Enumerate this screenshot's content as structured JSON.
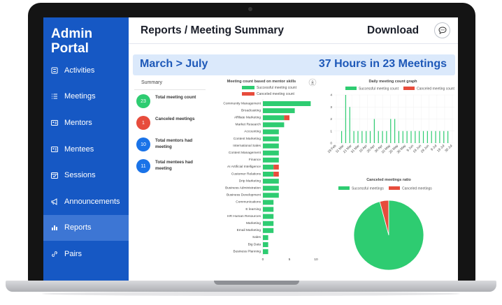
{
  "sidebar": {
    "title_line1": "Admin",
    "title_line2": "Portal",
    "items": [
      {
        "label": "Activities",
        "icon": "activities-icon"
      },
      {
        "label": "Meetings",
        "icon": "list-icon"
      },
      {
        "label": "Mentors",
        "icon": "id-card-icon"
      },
      {
        "label": "Mentees",
        "icon": "id-card-icon"
      },
      {
        "label": "Sessions",
        "icon": "calendar-icon"
      },
      {
        "label": "Announcements",
        "icon": "megaphone-icon"
      },
      {
        "label": "Reports",
        "icon": "bar-chart-icon",
        "active": true
      },
      {
        "label": "Pairs",
        "icon": "link-icon"
      }
    ]
  },
  "header": {
    "title": "Reports / Meeting Summary",
    "download_label": "Download",
    "chat_icon": "chat-icon"
  },
  "banner": {
    "range": "March > July",
    "total": "37 Hours in 23 Meetings"
  },
  "summary": {
    "title": "Summary",
    "stats": [
      {
        "value": "23",
        "label": "Total meeting count",
        "color": "#2ecc71"
      },
      {
        "value": "1",
        "label": "Canceled meetings",
        "color": "#e74c3c"
      },
      {
        "value": "10",
        "label": "Total mentors had meeting",
        "color": "#1a73e8"
      },
      {
        "value": "11",
        "label": "Total mentees had meeting",
        "color": "#1a73e8"
      }
    ]
  },
  "colors": {
    "success": "#2ecc71",
    "canceled": "#e74c3c",
    "sidebar": "#1658c4"
  },
  "chart_data": [
    {
      "type": "bar",
      "orientation": "horizontal",
      "stacked": true,
      "title": "Meeting count based on mentor skills",
      "download_icon": "download-icon",
      "legend": "top",
      "categories": [
        "Community Management",
        "Broadcasting",
        "Affiliate Marketing",
        "Market Research",
        "Accounting",
        "Content Marketing",
        "International Sales",
        "Content Management",
        "Finance",
        "AI Artificial Intelligence",
        "Customer Relations",
        "Drip Marketing",
        "Business Administration",
        "Business Development",
        "Communications",
        "E learning",
        "HR Human Resources",
        "Marketing",
        "Email Marketing",
        "Sales",
        "Big Data",
        "Business Planning"
      ],
      "series": [
        {
          "name": "Successful meeting count",
          "color": "#2ecc71",
          "values": [
            9,
            6,
            4,
            4,
            3,
            3,
            3,
            3,
            3,
            2,
            2,
            3,
            3,
            3,
            2,
            2,
            2,
            2,
            2,
            1,
            1,
            1
          ]
        },
        {
          "name": "Canceled meeting count",
          "color": "#e74c3c",
          "values": [
            0,
            0,
            1,
            0,
            0,
            0,
            0,
            0,
            0,
            1,
            1,
            0,
            0,
            0,
            0,
            0,
            0,
            0,
            0,
            0,
            0,
            0
          ]
        }
      ],
      "xlim": [
        0,
        10
      ],
      "xticks": [
        "0",
        "5",
        "10"
      ]
    },
    {
      "type": "bar",
      "title": "Daily meeting count graph",
      "legend": "top",
      "xticks": [
        "29 Feb",
        "11 Mar",
        "21 Mar",
        "31 Mar",
        "10 Apr",
        "20 Apr",
        "30 Apr",
        "10 May",
        "20 May",
        "30 May",
        "9 Jun",
        "19 Jun",
        "29 Jun",
        "9 Jul",
        "19 Jul",
        "30 Jul"
      ],
      "yticks": [
        "0",
        "1",
        "2",
        "3",
        "4"
      ],
      "ylim": [
        0,
        4
      ],
      "series": [
        {
          "name": "Successful meeting count",
          "color": "#2ecc71",
          "values": [
            1,
            4,
            3,
            1,
            1,
            1,
            1,
            1,
            2,
            1,
            1,
            1,
            2,
            2,
            1,
            1,
            1,
            1,
            1,
            1,
            1,
            1,
            1,
            1,
            1,
            1,
            1
          ]
        },
        {
          "name": "Canceled meeting count",
          "color": "#e74c3c",
          "values": []
        }
      ]
    },
    {
      "type": "pie",
      "title": "Canceled meetings ratio",
      "legend": "top",
      "labels": [
        "Successful meetings",
        "Canceled meetings"
      ],
      "values": [
        23,
        1
      ],
      "colors": [
        "#2ecc71",
        "#e74c3c"
      ]
    }
  ]
}
